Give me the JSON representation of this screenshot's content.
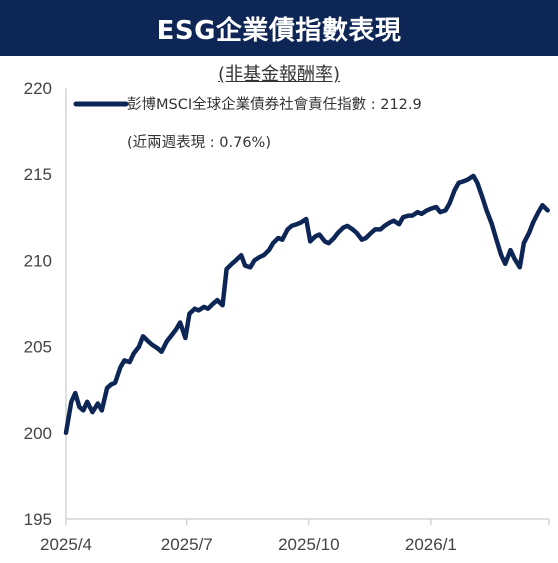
{
  "title": "ESG企業債指數表現",
  "subtitle": "(非基金報酬率)",
  "chart_data": {
    "type": "line",
    "title": "ESG企業債指數表現",
    "subtitle": "(非基金報酬率)",
    "ylim": [
      195,
      220
    ],
    "y_ticks": [
      "220",
      "215",
      "210",
      "205",
      "200",
      "195"
    ],
    "x_ticks": [
      "2025/4",
      "2025/7",
      "2025/10",
      "2026/1"
    ],
    "legend": {
      "name": "彭博MSCI全球企業債券社會責任指數 : 212.9",
      "note": "(近兩週表現 : 0.76%)"
    },
    "series": [
      {
        "name": "彭博MSCI全球企業債券社會責任指數",
        "color": "#0d2656",
        "x": [
          "2025-04-01",
          "2025-04-05",
          "2025-04-08",
          "2025-04-11",
          "2025-04-14",
          "2025-04-17",
          "2025-04-21",
          "2025-04-25",
          "2025-04-28",
          "2025-05-02",
          "2025-05-05",
          "2025-05-08",
          "2025-05-12",
          "2025-05-15",
          "2025-05-19",
          "2025-05-22",
          "2025-05-26",
          "2025-05-29",
          "2025-06-02",
          "2025-06-05",
          "2025-06-09",
          "2025-06-12",
          "2025-06-16",
          "2025-06-19",
          "2025-06-23",
          "2025-06-26",
          "2025-06-30",
          "2025-07-03",
          "2025-07-07",
          "2025-07-10",
          "2025-07-14",
          "2025-07-17",
          "2025-07-21",
          "2025-07-24",
          "2025-07-28",
          "2025-07-31",
          "2025-08-04",
          "2025-08-07",
          "2025-08-11",
          "2025-08-14",
          "2025-08-18",
          "2025-08-21",
          "2025-08-25",
          "2025-08-28",
          "2025-09-01",
          "2025-09-04",
          "2025-09-08",
          "2025-09-11",
          "2025-09-15",
          "2025-09-18",
          "2025-09-22",
          "2025-09-25",
          "2025-09-29",
          "2025-10-02",
          "2025-10-06",
          "2025-10-09",
          "2025-10-13",
          "2025-10-16",
          "2025-10-20",
          "2025-10-23",
          "2025-10-27",
          "2025-10-30",
          "2025-11-03",
          "2025-11-06",
          "2025-11-10",
          "2025-11-13",
          "2025-11-17",
          "2025-11-20",
          "2025-11-24",
          "2025-11-27",
          "2025-12-01",
          "2025-12-04",
          "2025-12-08",
          "2025-12-11",
          "2025-12-15",
          "2025-12-18",
          "2025-12-22",
          "2025-12-25",
          "2025-12-29",
          "2026-01-01",
          "2026-01-05",
          "2026-01-08",
          "2026-01-12",
          "2026-01-15",
          "2026-01-19",
          "2026-01-22",
          "2026-01-26",
          "2026-01-29",
          "2026-02-02",
          "2026-02-05",
          "2026-02-09",
          "2026-02-12",
          "2026-02-16",
          "2026-02-19",
          "2026-02-23",
          "2026-02-26",
          "2026-03-02",
          "2026-03-05",
          "2026-03-09",
          "2026-03-12",
          "2026-03-16",
          "2026-03-19",
          "2026-03-23",
          "2026-03-26",
          "2026-03-30"
        ],
        "values": [
          200.0,
          201.8,
          202.3,
          201.5,
          201.3,
          201.8,
          201.2,
          201.7,
          201.3,
          202.6,
          202.8,
          202.9,
          203.8,
          204.2,
          204.1,
          204.6,
          205.0,
          205.6,
          205.3,
          205.1,
          204.9,
          204.7,
          205.3,
          205.6,
          206.0,
          206.4,
          205.5,
          206.9,
          207.2,
          207.1,
          207.3,
          207.2,
          207.5,
          207.7,
          207.4,
          209.5,
          209.8,
          210.0,
          210.3,
          209.7,
          209.6,
          210.0,
          210.2,
          210.3,
          210.6,
          211.0,
          211.3,
          211.2,
          211.8,
          212.0,
          212.1,
          212.2,
          212.4,
          211.1,
          211.4,
          211.5,
          211.1,
          211.0,
          211.3,
          211.6,
          211.9,
          212.0,
          211.8,
          211.6,
          211.2,
          211.3,
          211.6,
          211.8,
          211.8,
          212.0,
          212.2,
          212.3,
          212.1,
          212.5,
          212.6,
          212.6,
          212.8,
          212.7,
          212.9,
          213.0,
          213.1,
          212.8,
          212.9,
          213.3,
          214.1,
          214.5,
          214.6,
          214.7,
          214.9,
          214.5,
          213.6,
          212.9,
          212.1,
          211.3,
          210.3,
          209.8,
          210.6,
          210.1,
          209.6,
          211.0,
          211.6,
          212.2,
          212.8,
          213.2,
          212.9
        ]
      }
    ]
  }
}
